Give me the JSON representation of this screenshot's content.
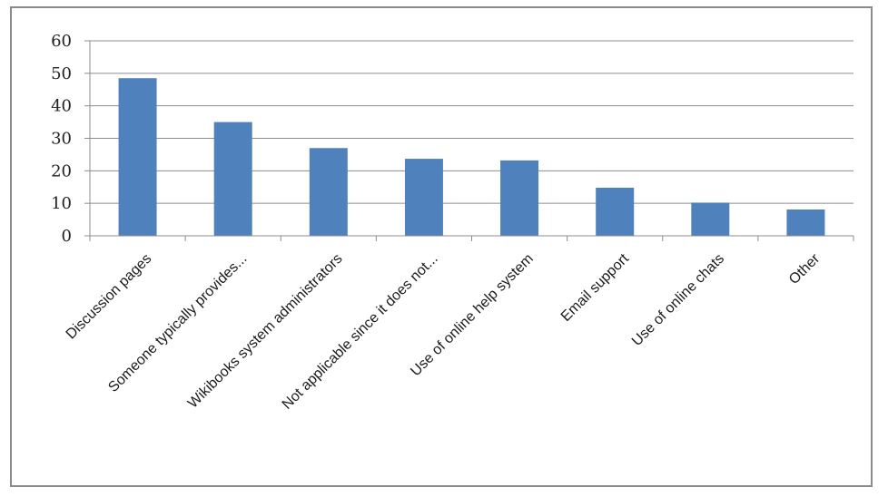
{
  "chart_data": {
    "type": "bar",
    "title": "",
    "xlabel": "",
    "ylabel": "",
    "categories": [
      "Discussion pages",
      "Someone typically provides...",
      "Wikibooks system administrators",
      "Not applicable since it does not...",
      "Use of online help system",
      "Email support",
      "Use of online chats",
      "Other"
    ],
    "values": [
      48.5,
      35,
      27,
      23.7,
      23.2,
      14.8,
      10.2,
      8.1
    ],
    "ylim": [
      0,
      60
    ],
    "yticks": [
      "0",
      "10",
      "20",
      "30",
      "40",
      "50",
      "60"
    ],
    "grid": true,
    "legend": "none",
    "bar_color": "#4f81bd",
    "grid_color": "#8c8c8c"
  }
}
